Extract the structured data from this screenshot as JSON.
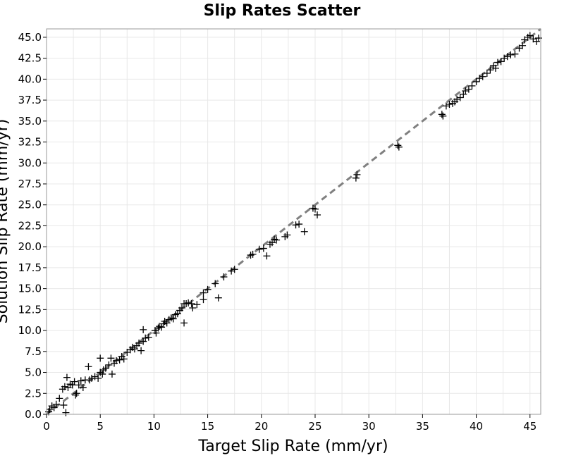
{
  "chart_data": {
    "type": "scatter",
    "title": "Slip Rates Scatter",
    "xlabel": "Target Slip Rate (mm/yr)",
    "ylabel": "Solution Slip Rate (mm/yr)",
    "xlim": [
      0,
      46
    ],
    "ylim": [
      0,
      46
    ],
    "grid": true,
    "x_ticks": [
      0,
      5,
      10,
      15,
      20,
      25,
      30,
      35,
      40,
      45
    ],
    "x_tick_labels": [
      "0",
      "5",
      "10",
      "15",
      "20",
      "25",
      "30",
      "35",
      "40",
      "45"
    ],
    "y_ticks": [
      0,
      2.5,
      5,
      7.5,
      10,
      12.5,
      15,
      17.5,
      20,
      22.5,
      25,
      27.5,
      30,
      32.5,
      35,
      37.5,
      40,
      42.5,
      45
    ],
    "y_tick_labels": [
      "0.0",
      "2.5",
      "5.0",
      "7.5",
      "10.0",
      "12.5",
      "15.0",
      "17.5",
      "20.0",
      "22.5",
      "25.0",
      "27.5",
      "30.0",
      "32.5",
      "35.0",
      "37.5",
      "40.0",
      "42.5",
      "45.0"
    ],
    "reference_line": {
      "x": [
        0,
        46
      ],
      "y": [
        0,
        46
      ],
      "style": "dashed",
      "color": "#808080"
    },
    "marker": "+",
    "marker_color": "#000000",
    "points": [
      [
        0.2,
        0.3
      ],
      [
        0.3,
        0.6
      ],
      [
        0.5,
        1.0
      ],
      [
        0.7,
        0.8
      ],
      [
        0.9,
        1.2
      ],
      [
        1.2,
        1.9
      ],
      [
        1.6,
        1.1
      ],
      [
        1.8,
        0.2
      ],
      [
        1.5,
        3.0
      ],
      [
        1.7,
        3.3
      ],
      [
        1.9,
        4.4
      ],
      [
        2.0,
        3.2
      ],
      [
        2.2,
        3.6
      ],
      [
        2.4,
        3.5
      ],
      [
        2.6,
        3.9
      ],
      [
        2.7,
        2.3
      ],
      [
        2.8,
        2.5
      ],
      [
        3.0,
        3.5
      ],
      [
        3.2,
        4.0
      ],
      [
        3.4,
        3.2
      ],
      [
        3.6,
        4.1
      ],
      [
        3.9,
        5.7
      ],
      [
        4.0,
        4.1
      ],
      [
        4.2,
        4.3
      ],
      [
        4.5,
        4.5
      ],
      [
        4.8,
        4.3
      ],
      [
        5.0,
        5.0
      ],
      [
        5.2,
        4.8
      ],
      [
        5.3,
        5.3
      ],
      [
        5.5,
        5.5
      ],
      [
        5.8,
        5.9
      ],
      [
        5.0,
        6.7
      ],
      [
        6.0,
        6.7
      ],
      [
        6.1,
        4.8
      ],
      [
        6.3,
        6.1
      ],
      [
        6.5,
        6.4
      ],
      [
        6.8,
        6.5
      ],
      [
        7.0,
        6.9
      ],
      [
        7.2,
        6.6
      ],
      [
        7.5,
        7.4
      ],
      [
        7.8,
        7.7
      ],
      [
        8.0,
        8.0
      ],
      [
        8.2,
        7.8
      ],
      [
        8.4,
        8.2
      ],
      [
        8.6,
        8.5
      ],
      [
        8.8,
        7.6
      ],
      [
        9.0,
        8.7
      ],
      [
        9.2,
        9.1
      ],
      [
        9.5,
        9.2
      ],
      [
        9.0,
        10.1
      ],
      [
        10.1,
        10.0
      ],
      [
        10.2,
        9.7
      ],
      [
        10.4,
        10.3
      ],
      [
        10.5,
        10.5
      ],
      [
        10.7,
        10.4
      ],
      [
        10.9,
        10.8
      ],
      [
        11.0,
        11.1
      ],
      [
        11.2,
        10.9
      ],
      [
        11.4,
        11.3
      ],
      [
        11.6,
        11.5
      ],
      [
        11.8,
        11.4
      ],
      [
        12.0,
        11.9
      ],
      [
        12.2,
        12.0
      ],
      [
        12.4,
        12.4
      ],
      [
        12.6,
        12.7
      ],
      [
        12.8,
        13.2
      ],
      [
        13.0,
        13.2
      ],
      [
        13.2,
        13.3
      ],
      [
        13.5,
        13.2
      ],
      [
        12.8,
        10.9
      ],
      [
        13.6,
        12.7
      ],
      [
        14.0,
        13.1
      ],
      [
        14.6,
        14.5
      ],
      [
        14.6,
        13.7
      ],
      [
        15.0,
        14.9
      ],
      [
        15.7,
        15.6
      ],
      [
        16.0,
        13.9
      ],
      [
        16.5,
        16.4
      ],
      [
        17.2,
        17.1
      ],
      [
        17.5,
        17.3
      ],
      [
        19.0,
        19.0
      ],
      [
        19.2,
        19.1
      ],
      [
        19.8,
        19.7
      ],
      [
        20.2,
        19.8
      ],
      [
        20.5,
        18.9
      ],
      [
        20.8,
        20.3
      ],
      [
        21.0,
        20.5
      ],
      [
        21.2,
        20.9
      ],
      [
        21.4,
        20.8
      ],
      [
        22.2,
        21.2
      ],
      [
        22.4,
        21.4
      ],
      [
        23.2,
        22.6
      ],
      [
        23.5,
        22.7
      ],
      [
        24.0,
        21.8
      ],
      [
        24.8,
        24.6
      ],
      [
        25.0,
        24.5
      ],
      [
        25.2,
        23.8
      ],
      [
        28.8,
        28.2
      ],
      [
        28.9,
        28.6
      ],
      [
        32.7,
        32.1
      ],
      [
        32.8,
        31.9
      ],
      [
        36.8,
        35.8
      ],
      [
        36.9,
        35.6
      ],
      [
        37.2,
        36.8
      ],
      [
        37.5,
        37.0
      ],
      [
        37.8,
        37.1
      ],
      [
        38.0,
        37.3
      ],
      [
        38.2,
        37.6
      ],
      [
        38.5,
        37.8
      ],
      [
        38.8,
        38.2
      ],
      [
        39.0,
        38.6
      ],
      [
        39.3,
        38.8
      ],
      [
        39.6,
        39.2
      ],
      [
        40.0,
        39.7
      ],
      [
        40.3,
        40.1
      ],
      [
        40.6,
        40.3
      ],
      [
        41.0,
        40.7
      ],
      [
        41.3,
        41.1
      ],
      [
        41.6,
        41.6
      ],
      [
        41.8,
        41.3
      ],
      [
        42.0,
        42.0
      ],
      [
        42.3,
        42.1
      ],
      [
        42.6,
        42.5
      ],
      [
        42.9,
        42.7
      ],
      [
        43.2,
        42.9
      ],
      [
        43.6,
        43.0
      ],
      [
        44.0,
        43.7
      ],
      [
        44.3,
        44.0
      ],
      [
        44.5,
        44.7
      ],
      [
        44.8,
        45.0
      ],
      [
        45.0,
        45.2
      ],
      [
        45.3,
        44.8
      ],
      [
        45.6,
        44.5
      ],
      [
        45.8,
        44.9
      ]
    ]
  }
}
